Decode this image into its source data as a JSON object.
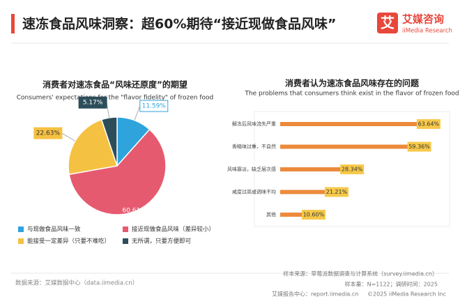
{
  "header": {
    "title": "速冻食品风味洞察：超60%期待“接近现做食品风味”",
    "logo_cn": "艾媒咨询",
    "logo_en": "iiMedia Research"
  },
  "chart_data": [
    {
      "type": "pie",
      "title": "消费者对速冻食品“风味还原度”的期望",
      "subtitle": "Consumers' expectations for the \"flavor fidelity\" of frozen food",
      "categories": [
        "与现做食品风味一致",
        "接近现做食品风味（差异较小）",
        "能接受一定差异（只要不难吃）",
        "无所谓，只要方便即可"
      ],
      "values": [
        11.59,
        60.61,
        22.63,
        5.17
      ],
      "value_labels": [
        "11.59%",
        "60.61%",
        "22.63%",
        "5.17%"
      ],
      "colors": [
        "#2ea3dc",
        "#e65a6f",
        "#f5c142",
        "#2c4e5a"
      ]
    },
    {
      "type": "hbar",
      "title": "消费者认为速冻食品风味存在的问题",
      "subtitle": "The problems that consumers think exist in the flavor of frozen food",
      "categories": [
        "解冻后风味流失严重",
        "香精味过重，不自然",
        "风味寡淡，缺乏层次感",
        "咸度过高或调味不均",
        "其他"
      ],
      "values": [
        63.64,
        59.36,
        28.34,
        21.21,
        10.6
      ],
      "value_labels": [
        "63.64%",
        "59.36%",
        "28.34%",
        "21.21%",
        "10.60%"
      ],
      "color": "#ec8a3c",
      "xlim": [
        0,
        100
      ]
    }
  ],
  "footer": {
    "source": "数据来源：艾媒数据中心（data.iimedia.cn）",
    "sample_source": "样本来源：草莓派数据调查与计算系统（survey.iimedia.cn）",
    "sample_size": "样本量：N=1122；调研时间：2025",
    "report": "艾媒报告中心：report.iimedia.cn",
    "copyright": "©2025  iiMedia Research  Inc"
  }
}
